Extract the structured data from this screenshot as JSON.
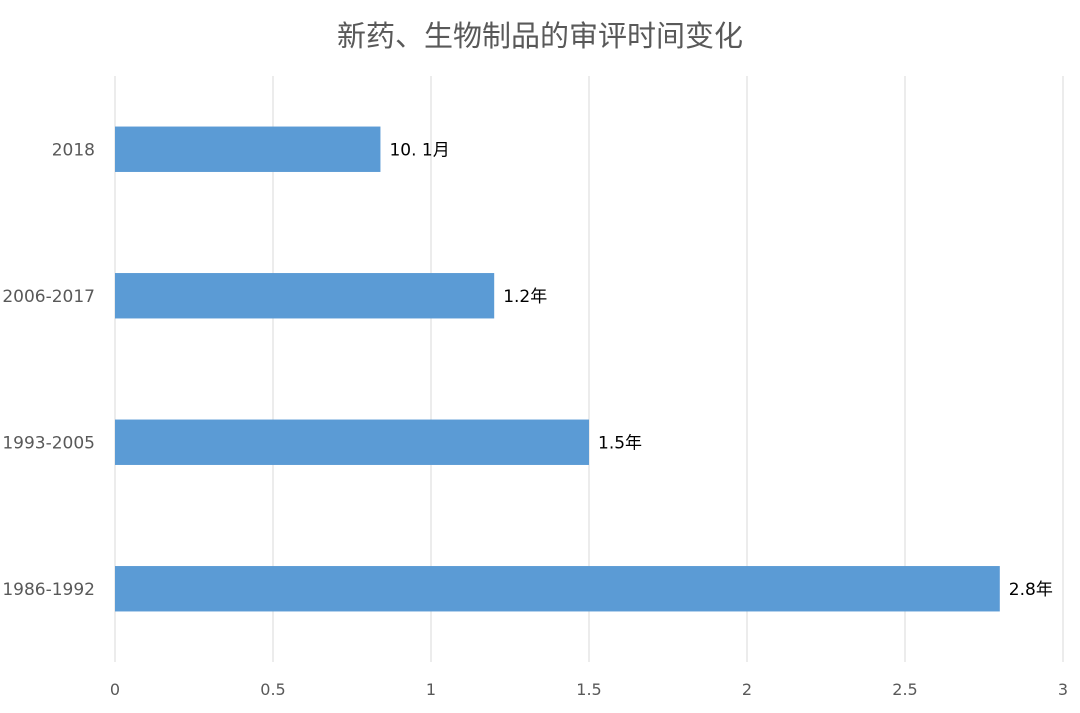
{
  "chart_data": {
    "type": "bar",
    "orientation": "horizontal",
    "title": "新药、生物制品的审评时间变化",
    "xlabel": "",
    "ylabel": "",
    "categories": [
      "2018",
      "2006-2017",
      "1993-2005",
      "1986-1992"
    ],
    "values": [
      0.84,
      1.2,
      1.5,
      2.8
    ],
    "data_labels": [
      "10. 1月",
      "1.2年",
      "1.5年",
      "2.8年"
    ],
    "xlim": [
      0,
      3
    ],
    "x_ticks": [
      "0",
      "0.5",
      "1",
      "1.5",
      "2",
      "2.5",
      "3"
    ],
    "grid": true,
    "legend": "none",
    "bar_color": "#5b9bd5"
  }
}
